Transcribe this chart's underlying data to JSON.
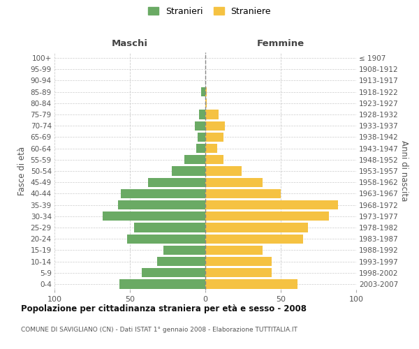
{
  "age_groups": [
    "0-4",
    "5-9",
    "10-14",
    "15-19",
    "20-24",
    "25-29",
    "30-34",
    "35-39",
    "40-44",
    "45-49",
    "50-54",
    "55-59",
    "60-64",
    "65-69",
    "70-74",
    "75-79",
    "80-84",
    "85-89",
    "90-94",
    "95-99",
    "100+"
  ],
  "birth_years": [
    "2003-2007",
    "1998-2002",
    "1993-1997",
    "1988-1992",
    "1983-1987",
    "1978-1982",
    "1973-1977",
    "1968-1972",
    "1963-1967",
    "1958-1962",
    "1953-1957",
    "1948-1952",
    "1943-1947",
    "1938-1942",
    "1933-1937",
    "1928-1932",
    "1923-1927",
    "1918-1922",
    "1913-1917",
    "1908-1912",
    "≤ 1907"
  ],
  "maschi": [
    57,
    42,
    32,
    28,
    52,
    47,
    68,
    58,
    56,
    38,
    22,
    14,
    6,
    5,
    7,
    4,
    0,
    3,
    0,
    0,
    0
  ],
  "femmine": [
    61,
    44,
    44,
    38,
    65,
    68,
    82,
    88,
    50,
    38,
    24,
    12,
    8,
    12,
    13,
    9,
    1,
    1,
    0,
    0,
    0
  ],
  "male_color": "#6aaa64",
  "female_color": "#f5c242",
  "bar_height": 0.82,
  "xlim": 100,
  "title": "Popolazione per cittadinanza straniera per età e sesso - 2008",
  "subtitle": "COMUNE DI SAVIGLIANO (CN) - Dati ISTAT 1° gennaio 2008 - Elaborazione TUTTITALIA.IT",
  "label_maschi": "Maschi",
  "label_femmine": "Femmine",
  "ylabel_left": "Fasce di età",
  "ylabel_right": "Anni di nascita",
  "legend_male": "Stranieri",
  "legend_female": "Straniere",
  "background_color": "#ffffff",
  "grid_color": "#cccccc"
}
